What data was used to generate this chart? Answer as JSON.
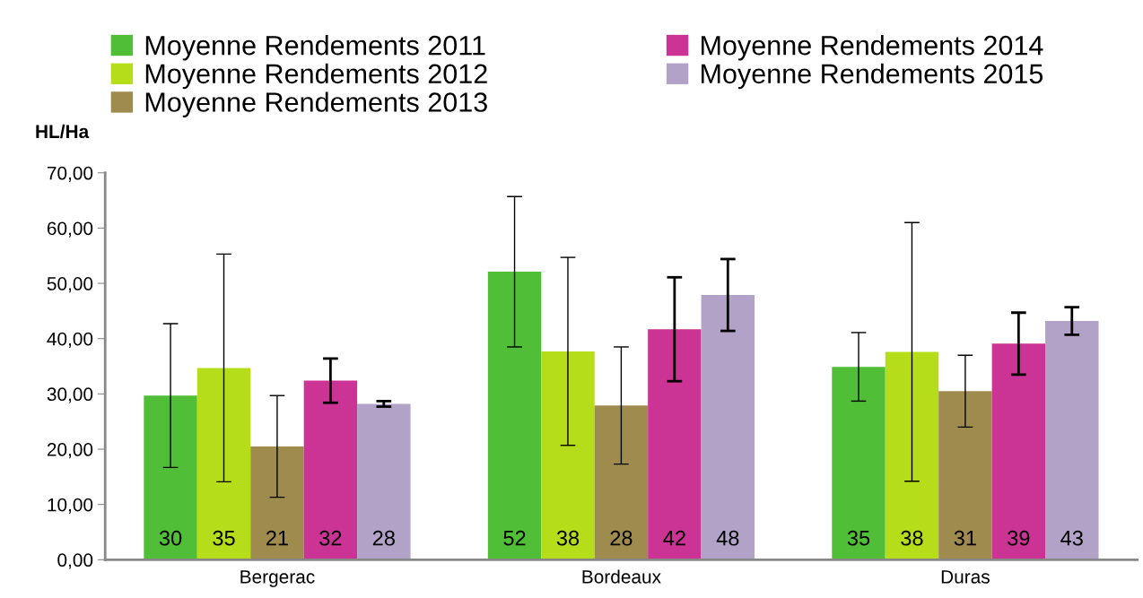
{
  "chart_data": {
    "type": "bar",
    "ylabel": "HL/Ha",
    "categories": [
      "Bergerac",
      "Bordeaux",
      "Duras"
    ],
    "series": [
      {
        "name": "Moyenne Rendements 2011",
        "color": "#50be37",
        "values": [
          29.7,
          52.1,
          34.9
        ],
        "errors": [
          13.0,
          13.6,
          6.2
        ],
        "value_labels": [
          "30",
          "52",
          "35"
        ]
      },
      {
        "name": "Moyenne Rendements 2012",
        "color": "#b5dd1a",
        "values": [
          34.7,
          37.7,
          37.6
        ],
        "errors": [
          20.6,
          17.0,
          23.4
        ],
        "value_labels": [
          "35",
          "38",
          "38"
        ]
      },
      {
        "name": "Moyenne Rendements 2013",
        "color": "#a08b4e",
        "values": [
          20.5,
          27.9,
          30.5
        ],
        "errors": [
          9.2,
          10.6,
          6.5
        ],
        "value_labels": [
          "21",
          "28",
          "31"
        ]
      },
      {
        "name": "Moyenne Rendements 2014",
        "color": "#cb3394",
        "values": [
          32.4,
          41.7,
          39.1
        ],
        "errors": [
          4.0,
          9.4,
          5.6
        ],
        "value_labels": [
          "32",
          "42",
          "39"
        ]
      },
      {
        "name": "Moyenne Rendements 2015",
        "color": "#b2a2c7",
        "values": [
          28.2,
          47.9,
          43.2
        ],
        "errors": [
          0.5,
          6.5,
          2.5
        ],
        "value_labels": [
          "28",
          "48",
          "43"
        ]
      }
    ],
    "ylim": [
      0,
      70
    ],
    "yticks": [
      {
        "value": 0,
        "label": "0,00"
      },
      {
        "value": 10,
        "label": "10,00"
      },
      {
        "value": 20,
        "label": "20,00"
      },
      {
        "value": 30,
        "label": "30,00"
      },
      {
        "value": 40,
        "label": "40,00"
      },
      {
        "value": 50,
        "label": "50,00"
      },
      {
        "value": 60,
        "label": "60,00"
      },
      {
        "value": 70,
        "label": "70,00"
      }
    ],
    "grid": false,
    "legend": "top"
  }
}
